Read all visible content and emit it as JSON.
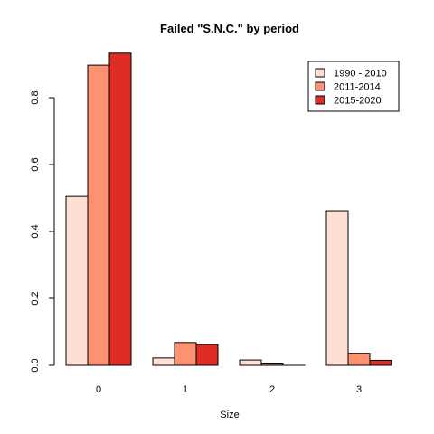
{
  "chart_data": {
    "type": "bar",
    "title": "Failed \"S.N.C.\" by period",
    "xlabel": "Size",
    "ylabel": "",
    "categories": [
      "0",
      "1",
      "2",
      "3"
    ],
    "series": [
      {
        "name": "1990 - 2010",
        "color": "#fee0d2",
        "values": [
          0.505,
          0.022,
          0.016,
          0.462
        ]
      },
      {
        "name": "2011-2014",
        "color": "#fc9272",
        "values": [
          0.897,
          0.068,
          0.004,
          0.036
        ]
      },
      {
        "name": "2015-2020",
        "color": "#de2d26",
        "values": [
          0.933,
          0.062,
          0.0,
          0.015
        ]
      }
    ],
    "yticks": [
      "0.0",
      "0.2",
      "0.4",
      "0.6",
      "0.8"
    ],
    "ylim": [
      0,
      0.933
    ],
    "legend_position": "top-right",
    "grid": false
  }
}
